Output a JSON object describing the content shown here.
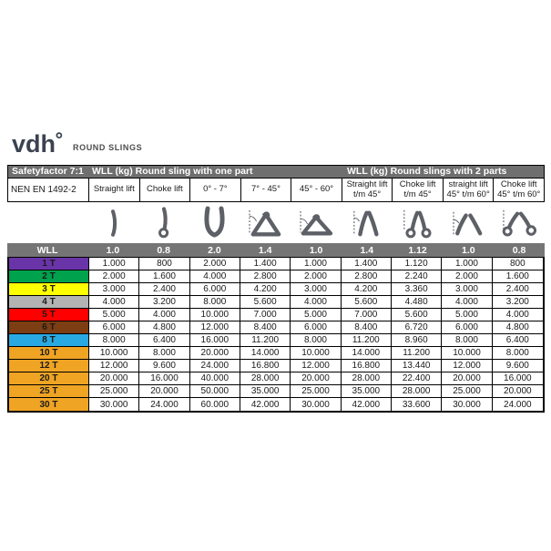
{
  "logo": {
    "brand": "vdh",
    "subtitle": "ROUND SLINGS"
  },
  "colors": {
    "band_gray": "#6f6f6f",
    "factor_gray": "#757575",
    "border_black": "#000000",
    "icon_gray": "#5d6066",
    "brand_color": "#3b4350"
  },
  "table": {
    "band1": {
      "safety_factor": "Safetyfactor 7:1",
      "one_part": "WLL (kg) Round sling with one part",
      "two_parts": "WLL (kg) Round slings with 2 parts"
    },
    "norm": "NEN EN 1492-2",
    "wll_header": "WLL",
    "columns": [
      {
        "header": "Straight lift",
        "factor": "1.0",
        "icon": "straight-sling-icon"
      },
      {
        "header": "Choke lift",
        "factor": "0.8",
        "icon": "choke-sling-icon"
      },
      {
        "header": "0° - 7°",
        "factor": "2.0",
        "icon": "basket-vertical-icon"
      },
      {
        "header": "7° - 45°",
        "factor": "1.4",
        "icon": "basket-angle-45-icon"
      },
      {
        "header": "45° - 60°",
        "factor": "1.0",
        "icon": "basket-angle-60-icon"
      },
      {
        "header": "Straight lift\nt/m 45°",
        "factor": "1.4",
        "icon": "two-leg-straight-45-icon"
      },
      {
        "header": "Choke lift\nt/m 45°",
        "factor": "1.12",
        "icon": "two-leg-choke-45-icon"
      },
      {
        "header": "straight lift\n45° t/m 60°",
        "factor": "1.0",
        "icon": "two-leg-straight-60-icon"
      },
      {
        "header": "Choke lift\n45° t/m 60°",
        "factor": "0.8",
        "icon": "two-leg-choke-60-icon"
      }
    ],
    "rows": [
      {
        "label": "1 T",
        "color": "#6934a8",
        "values": [
          "1.000",
          "800",
          "2.000",
          "1.400",
          "1.000",
          "1.400",
          "1.120",
          "1.000",
          "800"
        ]
      },
      {
        "label": "2 T",
        "color": "#00a24d",
        "values": [
          "2.000",
          "1.600",
          "4.000",
          "2.800",
          "2.000",
          "2.800",
          "2.240",
          "2.000",
          "1.600"
        ]
      },
      {
        "label": "3 T",
        "color": "#ffff00",
        "values": [
          "3.000",
          "2.400",
          "6.000",
          "4.200",
          "3.000",
          "4.200",
          "3.360",
          "3.000",
          "2.400"
        ]
      },
      {
        "label": "4 T",
        "color": "#b3b3b3",
        "values": [
          "4.000",
          "3.200",
          "8.000",
          "5.600",
          "4.000",
          "5.600",
          "4.480",
          "4.000",
          "3.200"
        ]
      },
      {
        "label": "5 T",
        "color": "#fe0000",
        "values": [
          "5.000",
          "4.000",
          "10.000",
          "7.000",
          "5.000",
          "7.000",
          "5.600",
          "5.000",
          "4.000"
        ]
      },
      {
        "label": "6 T",
        "color": "#7c3e12",
        "values": [
          "6.000",
          "4.800",
          "12.000",
          "8.400",
          "6.000",
          "8.400",
          "6.720",
          "6.000",
          "4.800"
        ]
      },
      {
        "label": "8 T",
        "color": "#29a9e1",
        "values": [
          "8.000",
          "6.400",
          "16.000",
          "11.200",
          "8.000",
          "11.200",
          "8.960",
          "8.000",
          "6.400"
        ]
      },
      {
        "label": "10 T",
        "color": "#efa424",
        "values": [
          "10.000",
          "8.000",
          "20.000",
          "14.000",
          "10.000",
          "14.000",
          "11.200",
          "10.000",
          "8.000"
        ]
      },
      {
        "label": "12 T",
        "color": "#efa424",
        "values": [
          "12.000",
          "9.600",
          "24.000",
          "16.800",
          "12.000",
          "16.800",
          "13.440",
          "12.000",
          "9.600"
        ]
      },
      {
        "label": "20 T",
        "color": "#efa424",
        "values": [
          "20.000",
          "16.000",
          "40.000",
          "28.000",
          "20.000",
          "28.000",
          "22.400",
          "20.000",
          "16.000"
        ]
      },
      {
        "label": "25 T",
        "color": "#efa424",
        "values": [
          "25.000",
          "20.000",
          "50.000",
          "35.000",
          "25.000",
          "35.000",
          "28.000",
          "25.000",
          "20.000"
        ]
      },
      {
        "label": "30 T",
        "color": "#efa424",
        "values": [
          "30.000",
          "24.000",
          "60.000",
          "42.000",
          "30.000",
          "42.000",
          "33.600",
          "30.000",
          "24.000"
        ]
      }
    ]
  }
}
